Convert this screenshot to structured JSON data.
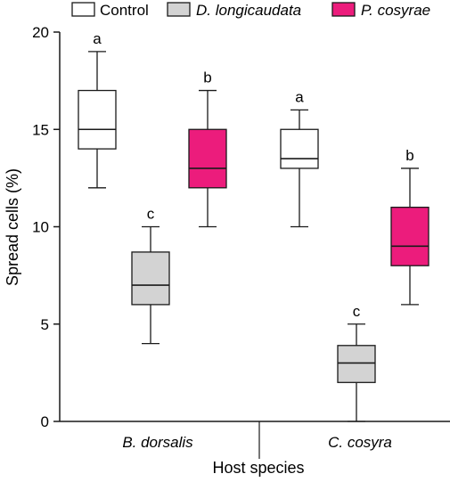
{
  "chart_data": {
    "type": "box",
    "xlabel": "Host species",
    "ylabel": "Spread cells (%)",
    "ylim": [
      0,
      20
    ],
    "yticks": [
      0,
      5,
      10,
      15,
      20
    ],
    "grid": false,
    "legend_position": "top",
    "groups": [
      "B. dorsalis",
      "C. cosyra"
    ],
    "series": [
      {
        "name": "Control",
        "italic": false,
        "color": "#ffffff",
        "boxes": [
          {
            "group": "B. dorsalis",
            "min": 12,
            "q1": 14,
            "median": 15,
            "q3": 17,
            "max": 19,
            "letter": "a"
          },
          {
            "group": "C. cosyra",
            "min": 10,
            "q1": 13,
            "median": 13.5,
            "q3": 15,
            "max": 16,
            "letter": "a"
          }
        ]
      },
      {
        "name": "D. longicaudata",
        "italic": true,
        "color": "#d3d3d3",
        "boxes": [
          {
            "group": "B. dorsalis",
            "min": 4,
            "q1": 6,
            "median": 7,
            "q3": 8.7,
            "max": 10,
            "letter": "c"
          },
          {
            "group": "C. cosyra",
            "min": 0,
            "q1": 2,
            "median": 3,
            "q3": 3.9,
            "max": 5,
            "letter": "c"
          }
        ]
      },
      {
        "name": "P. cosyrae",
        "italic": true,
        "color": "#ec1c7c",
        "boxes": [
          {
            "group": "B. dorsalis",
            "min": 10,
            "q1": 12,
            "median": 13,
            "q3": 15,
            "max": 17,
            "letter": "b"
          },
          {
            "group": "C. cosyra",
            "min": 6,
            "q1": 8,
            "median": 9,
            "q3": 11,
            "max": 13,
            "letter": "b"
          }
        ]
      }
    ]
  }
}
